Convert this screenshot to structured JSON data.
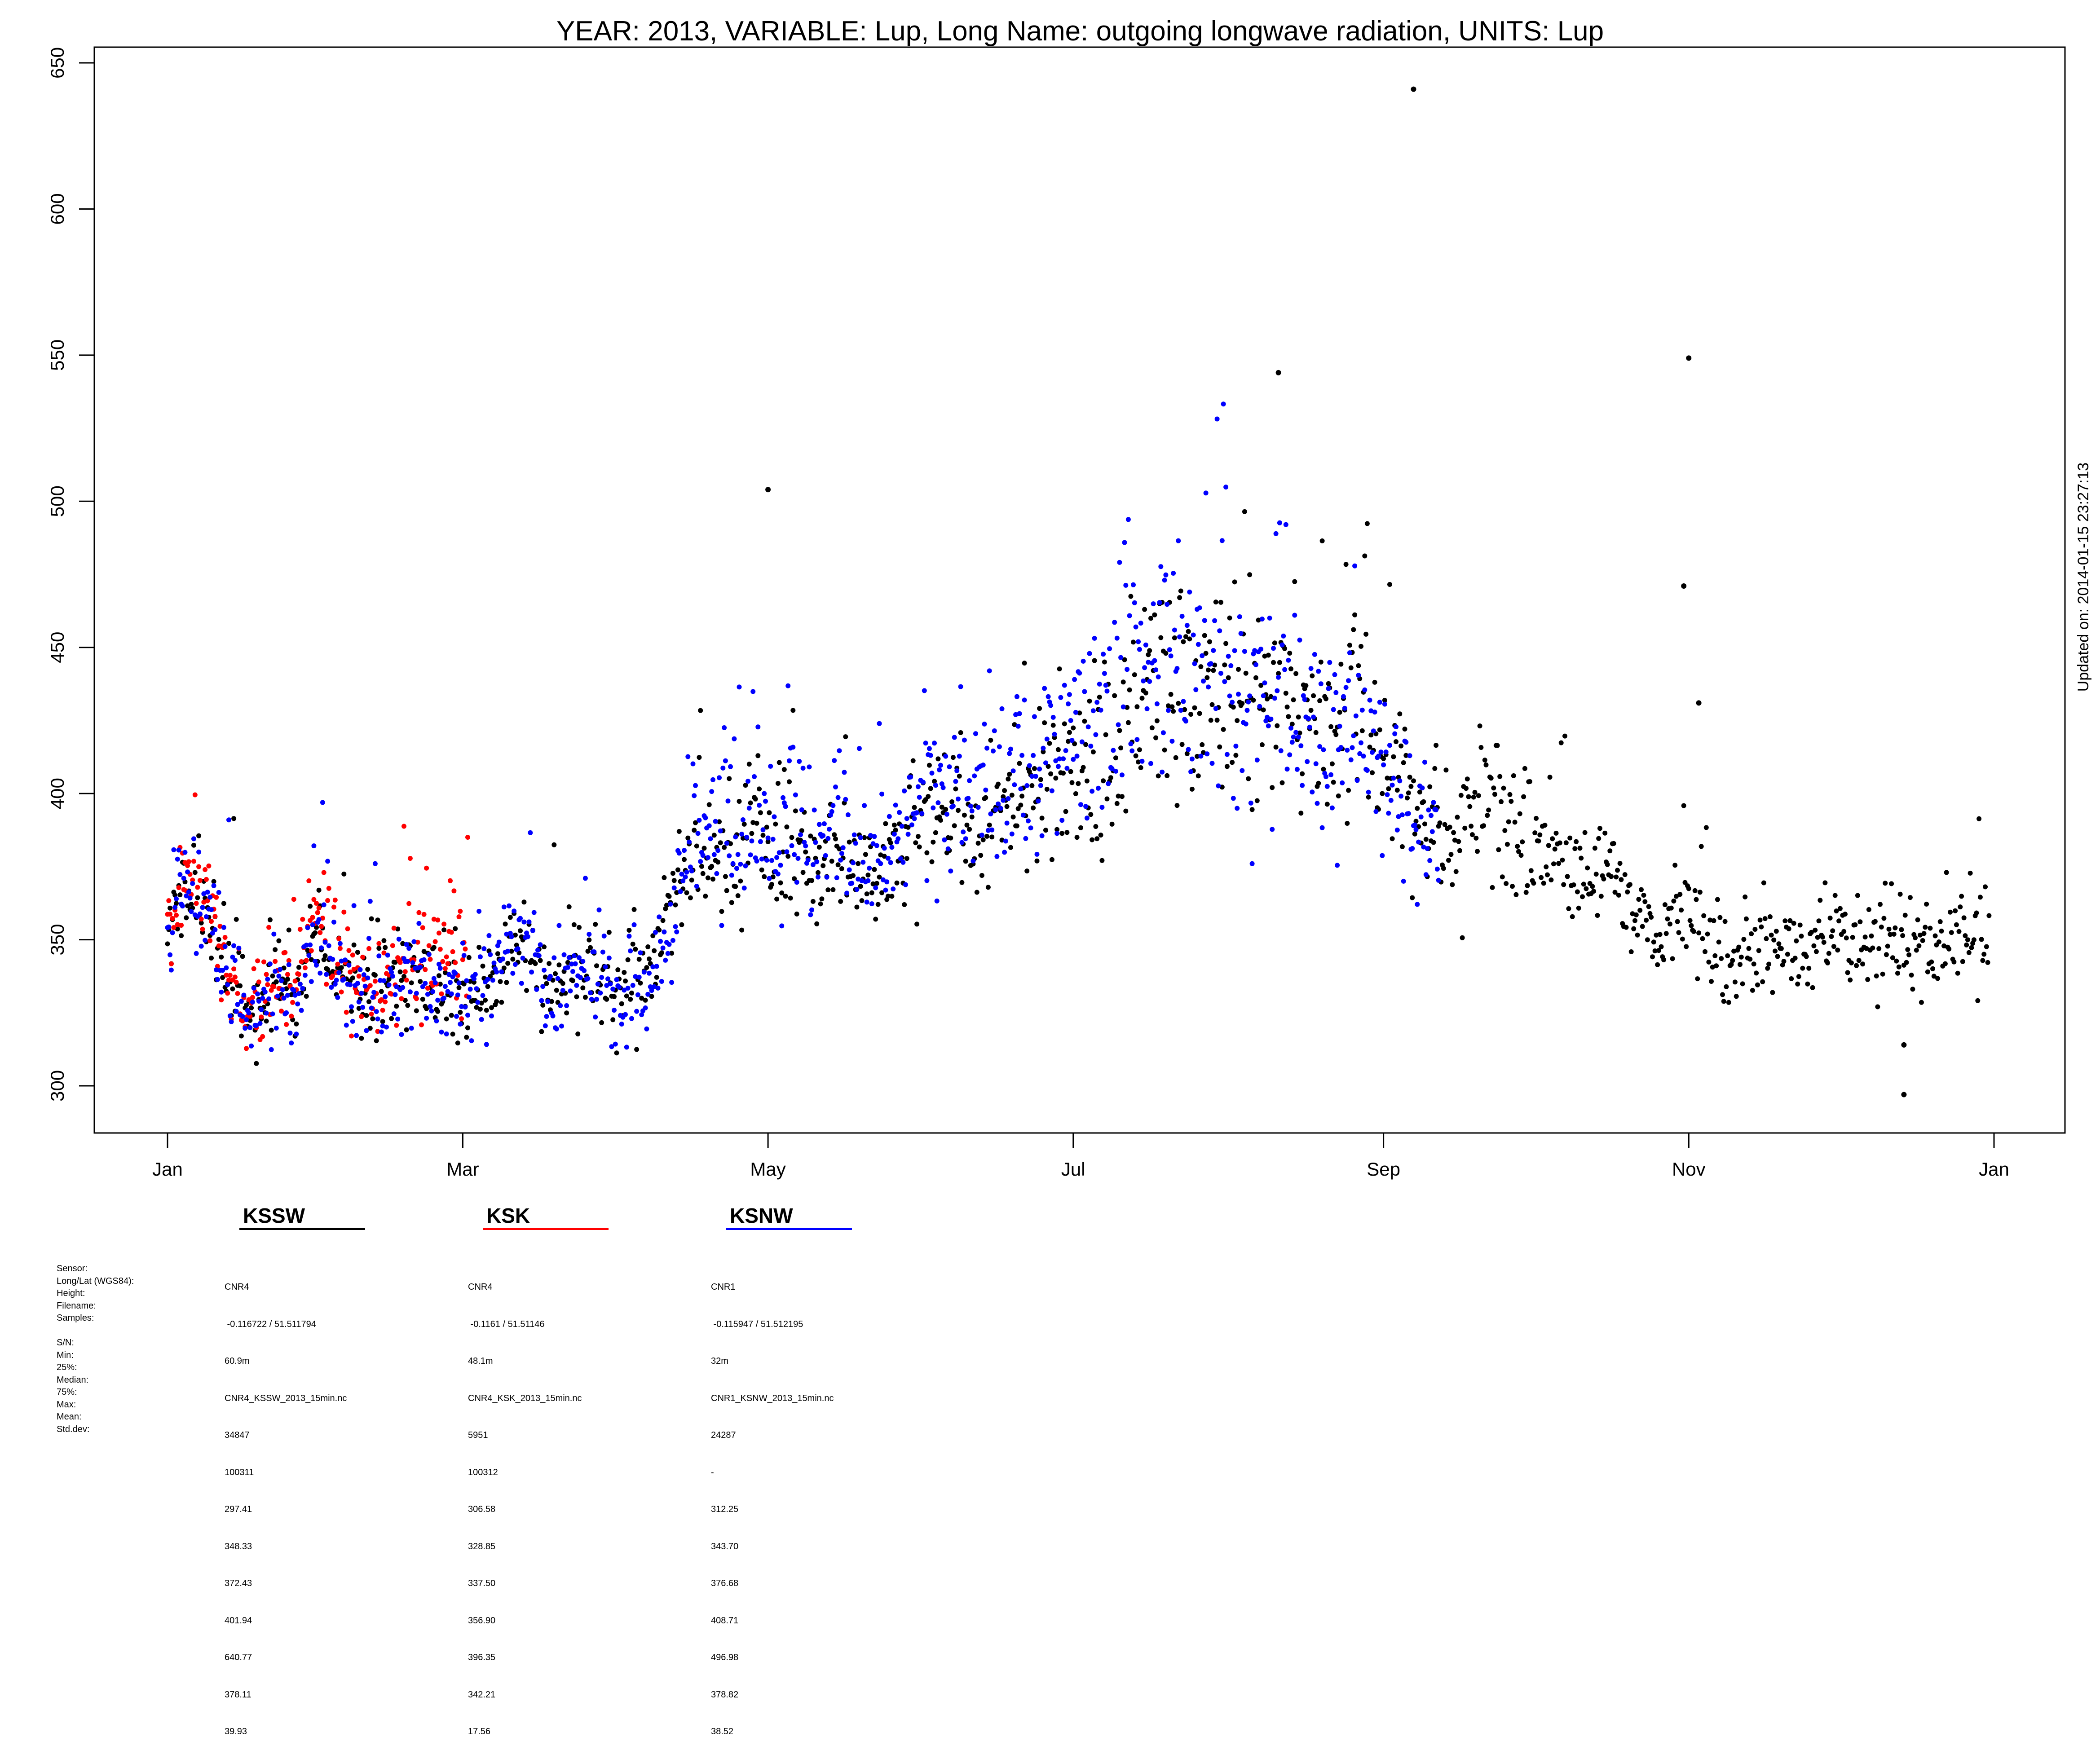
{
  "page": {
    "updated_note": "Updated on: 2014-01-15 23:27:13"
  },
  "chart_data": {
    "type": "scatter",
    "title": "YEAR: 2013, VARIABLE: Lup, Long Name: outgoing  longwave  radiation, UNITS: Lup",
    "xlabel": "",
    "ylabel": "",
    "xlim": [
      "2013-01-01",
      "2014-01-01"
    ],
    "ylim": [
      300,
      650
    ],
    "x_ticks": [
      {
        "label": "Jan",
        "date": "2013-01-01"
      },
      {
        "label": "Mar",
        "date": "2013-03-01"
      },
      {
        "label": "May",
        "date": "2013-05-01"
      },
      {
        "label": "Jul",
        "date": "2013-07-01"
      },
      {
        "label": "Sep",
        "date": "2013-09-01"
      },
      {
        "label": "Nov",
        "date": "2013-11-01"
      },
      {
        "label": "Jan",
        "date": "2014-01-01"
      }
    ],
    "y_ticks": [
      300,
      350,
      400,
      450,
      500,
      550,
      600,
      650
    ],
    "grid": false,
    "legend_placement": "bottom-left, below plot",
    "series": [
      {
        "name": "KSSW",
        "color": "#000000",
        "profile": [
          [
            0,
            348
          ],
          [
            2,
            363
          ],
          [
            5,
            364
          ],
          [
            8,
            360
          ],
          [
            11,
            343
          ],
          [
            14,
            332
          ],
          [
            18,
            325
          ],
          [
            22,
            336
          ],
          [
            26,
            330
          ],
          [
            29,
            352
          ],
          [
            32,
            347
          ],
          [
            36,
            336
          ],
          [
            41,
            330
          ],
          [
            46,
            336
          ],
          [
            50,
            337
          ],
          [
            53,
            330
          ],
          [
            56,
            331
          ],
          [
            59,
            328
          ],
          [
            62,
            332
          ],
          [
            65,
            333
          ],
          [
            68,
            347
          ],
          [
            72,
            351
          ],
          [
            76,
            335
          ],
          [
            80,
            340
          ],
          [
            85,
            337
          ],
          [
            88,
            338
          ],
          [
            90,
            327
          ],
          [
            93,
            341
          ],
          [
            96,
            337
          ],
          [
            99,
            352
          ],
          [
            103,
            372
          ],
          [
            107,
            382
          ],
          [
            111,
            378
          ],
          [
            115,
            387
          ],
          [
            118,
            400
          ],
          [
            121,
            378
          ],
          [
            124,
            386
          ],
          [
            127,
            386
          ],
          [
            130,
            373
          ],
          [
            133,
            385
          ],
          [
            137,
            375
          ],
          [
            140,
            372
          ],
          [
            143,
            375
          ],
          [
            147,
            382
          ],
          [
            152,
            400
          ],
          [
            156,
            392
          ],
          [
            160,
            394
          ],
          [
            163,
            393
          ],
          [
            166,
            391
          ],
          [
            170,
            403
          ],
          [
            174,
            403
          ],
          [
            178,
            407
          ],
          [
            182,
            410
          ],
          [
            186,
            410
          ],
          [
            189,
            412
          ],
          [
            193,
            432
          ],
          [
            198,
            440
          ],
          [
            202,
            445
          ],
          [
            206,
            432
          ],
          [
            210,
            438
          ],
          [
            214,
            428
          ],
          [
            218,
            431
          ],
          [
            222,
            429
          ],
          [
            226,
            433
          ],
          [
            230,
            425
          ],
          [
            233,
            420
          ],
          [
            236,
            430
          ],
          [
            239,
            428
          ],
          [
            242,
            416
          ],
          [
            245,
            406
          ],
          [
            248,
            405
          ],
          [
            251,
            390
          ],
          [
            255,
            388
          ],
          [
            258,
            385
          ],
          [
            262,
            392
          ],
          [
            266,
            397
          ],
          [
            269,
            390
          ],
          [
            273,
            386
          ],
          [
            277,
            380
          ],
          [
            281,
            368
          ],
          [
            285,
            373
          ],
          [
            288,
            379
          ],
          [
            291,
            365
          ],
          [
            294,
            360
          ],
          [
            298,
            352
          ],
          [
            302,
            360
          ],
          [
            305,
            352
          ],
          [
            308,
            348
          ],
          [
            312,
            340
          ],
          [
            316,
            343
          ],
          [
            320,
            350
          ],
          [
            324,
            348
          ],
          [
            328,
            345
          ],
          [
            332,
            350
          ],
          [
            336,
            348
          ],
          [
            340,
            346
          ],
          [
            344,
            349
          ],
          [
            348,
            352
          ],
          [
            352,
            344
          ],
          [
            356,
            352
          ],
          [
            360,
            350
          ],
          [
            364,
            348
          ]
        ],
        "outliers": [
          [
            120,
            504
          ],
          [
            249,
            641
          ],
          [
            222,
            544
          ],
          [
            304,
            549
          ],
          [
            303,
            471
          ],
          [
            306,
            431
          ],
          [
            347,
            314
          ],
          [
            347,
            297
          ]
        ]
      },
      {
        "name": "KSK",
        "color": "#ff0000",
        "profile": [
          [
            0,
            345
          ],
          [
            2,
            368
          ],
          [
            5,
            368
          ],
          [
            8,
            362
          ],
          [
            11,
            345
          ],
          [
            14,
            333
          ],
          [
            18,
            326
          ],
          [
            22,
            338
          ],
          [
            26,
            334
          ],
          [
            29,
            356
          ],
          [
            32,
            355
          ],
          [
            36,
            340
          ],
          [
            41,
            333
          ],
          [
            46,
            340
          ],
          [
            50,
            342
          ],
          [
            53,
            347
          ],
          [
            55,
            348
          ],
          [
            57,
            345
          ],
          [
            60,
            340
          ]
        ],
        "outliers": []
      },
      {
        "name": "KSNW",
        "color": "#0000ff",
        "profile": [
          [
            0,
            345
          ],
          [
            2,
            366
          ],
          [
            5,
            366
          ],
          [
            8,
            361
          ],
          [
            11,
            344
          ],
          [
            14,
            331
          ],
          [
            18,
            323
          ],
          [
            22,
            334
          ],
          [
            26,
            330
          ],
          [
            29,
            352
          ],
          [
            32,
            348
          ],
          [
            36,
            335
          ],
          [
            41,
            329
          ],
          [
            46,
            335
          ],
          [
            50,
            338
          ],
          [
            53,
            334
          ],
          [
            56,
            332
          ],
          [
            59,
            330
          ],
          [
            62,
            335
          ],
          [
            65,
            336
          ],
          [
            68,
            352
          ],
          [
            72,
            352
          ],
          [
            76,
            328
          ],
          [
            80,
            342
          ],
          [
            85,
            336
          ],
          [
            88,
            340
          ],
          [
            90,
            326
          ],
          [
            93,
            334
          ],
          [
            96,
            333
          ],
          [
            99,
            342
          ],
          [
            103,
            372
          ],
          [
            107,
            390
          ],
          [
            111,
            385
          ],
          [
            115,
            390
          ],
          [
            118,
            396
          ],
          [
            121,
            380
          ],
          [
            124,
            388
          ],
          [
            127,
            390
          ],
          [
            130,
            375
          ],
          [
            133,
            392
          ],
          [
            137,
            380
          ],
          [
            140,
            377
          ],
          [
            143,
            380
          ],
          [
            147,
            386
          ],
          [
            152,
            405
          ],
          [
            156,
            397
          ],
          [
            160,
            398
          ],
          [
            163,
            396
          ],
          [
            166,
            395
          ],
          [
            170,
            407
          ],
          [
            174,
            408
          ],
          [
            178,
            413
          ],
          [
            182,
            424
          ],
          [
            186,
            425
          ],
          [
            189,
            425
          ],
          [
            193,
            443
          ],
          [
            198,
            438
          ],
          [
            202,
            443
          ],
          [
            206,
            436
          ],
          [
            210,
            440
          ],
          [
            214,
            430
          ],
          [
            218,
            434
          ],
          [
            222,
            432
          ],
          [
            226,
            428
          ],
          [
            230,
            425
          ],
          [
            233,
            422
          ],
          [
            236,
            425
          ],
          [
            239,
            420
          ],
          [
            242,
            413
          ],
          [
            245,
            405
          ],
          [
            248,
            400
          ],
          [
            251,
            390
          ],
          [
            254,
            383
          ]
        ],
        "outliers": []
      }
    ]
  },
  "legend": [
    {
      "name": "KSSW",
      "color": "#000000"
    },
    {
      "name": "KSK",
      "color": "#ff0000"
    },
    {
      "name": "KSNW",
      "color": "#0000ff"
    }
  ],
  "stats_table": {
    "row_labels": [
      "Sensor:",
      "Long/Lat (WGS84):",
      "Height:",
      "Filename:",
      "Samples:",
      "",
      "S/N:",
      "Min:",
      "25%:",
      "Median:",
      "75%:",
      "Max:",
      "Mean:",
      "Std.dev:"
    ],
    "columns": [
      {
        "values": [
          "CNR4",
          " -0.116722 / 51.511794",
          "60.9m",
          "CNR4_KSSW_2013_15min.nc",
          "34847",
          "100311",
          "297.41",
          "348.33",
          "372.43",
          "401.94",
          "640.77",
          "378.11",
          "39.93"
        ]
      },
      {
        "values": [
          "CNR4",
          " -0.1161 / 51.51146",
          "48.1m",
          "CNR4_KSK_2013_15min.nc",
          "5951",
          "100312",
          "306.58",
          "328.85",
          "337.50",
          "356.90",
          "396.35",
          "342.21",
          "17.56"
        ]
      },
      {
        "values": [
          "CNR1",
          " -0.115947 / 51.512195",
          "32m",
          "CNR1_KSNW_2013_15min.nc",
          "24287",
          "-",
          "312.25",
          "343.70",
          "376.68",
          "408.71",
          "496.98",
          "378.82",
          "38.52"
        ]
      }
    ]
  }
}
